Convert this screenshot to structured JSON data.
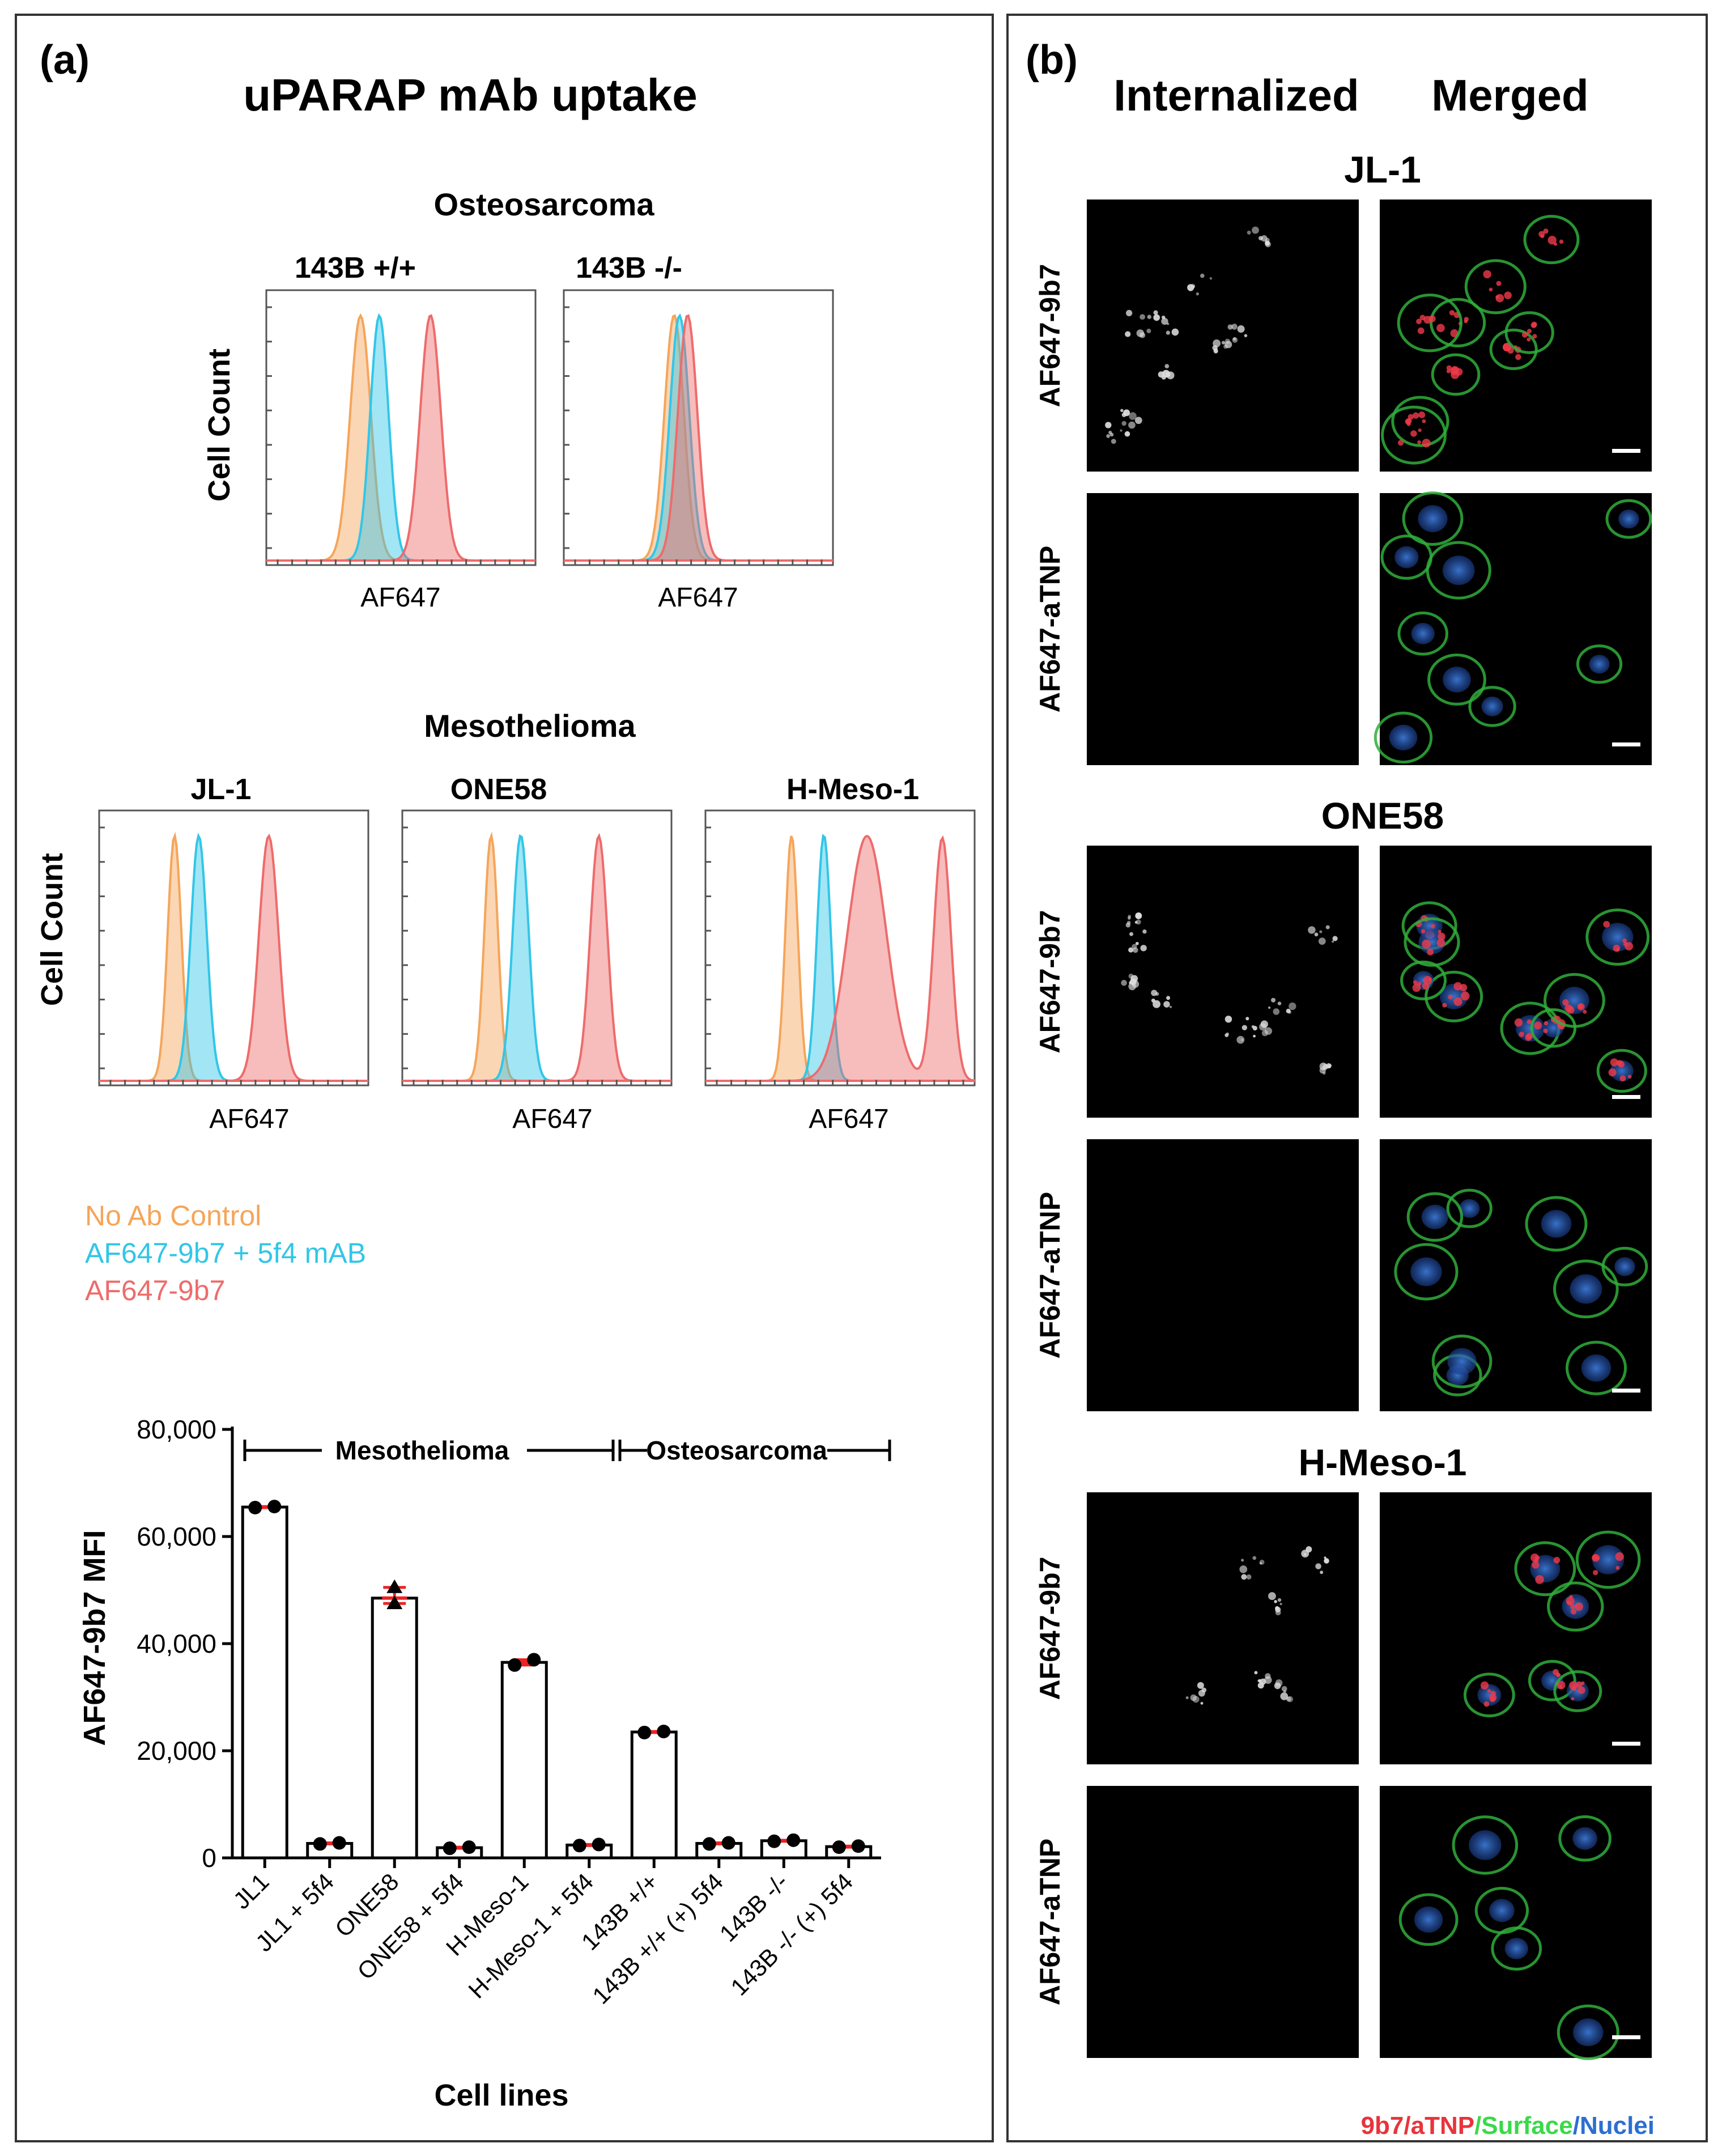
{
  "panel_a": {
    "label": "(a)",
    "title": "uPARAP mAb uptake",
    "groups": [
      {
        "name": "Osteosarcoma",
        "ylabel": "Cell Count",
        "plots": [
          {
            "title": "143B +/+",
            "xlabel": "AF647"
          },
          {
            "title": "143B -/-",
            "xlabel": "AF647"
          }
        ]
      },
      {
        "name": "Mesothelioma",
        "ylabel": "Cell Count",
        "plots": [
          {
            "title": "JL-1",
            "xlabel": "AF647"
          },
          {
            "title": "ONE58",
            "xlabel": "AF647"
          },
          {
            "title": "H-Meso-1",
            "xlabel": "AF647"
          }
        ]
      }
    ],
    "legend": [
      {
        "label": "No Ab Control",
        "color": "#f5a55a"
      },
      {
        "label": "AF647-9b7 + 5f4 mAB",
        "color": "#31c6e8"
      },
      {
        "label": "AF647-9b7",
        "color": "#ee6b6b"
      }
    ],
    "bar_chart": {
      "ylabel": "AF647-9b7 MFI",
      "xlabel": "Cell lines",
      "group_labels": [
        "Mesothelioma",
        "Osteosarcoma"
      ]
    }
  },
  "panel_b": {
    "label": "(b)",
    "column_headers": [
      "Internalized",
      "Merged"
    ],
    "sections": [
      {
        "name": "JL-1",
        "rows": [
          "AF647-9b7",
          "AF647-aTNP"
        ]
      },
      {
        "name": "ONE58",
        "rows": [
          "AF647-9b7",
          "AF647-aTNP"
        ]
      },
      {
        "name": "H-Meso-1",
        "rows": [
          "AF647-9b7",
          "AF647-aTNP"
        ]
      }
    ],
    "legend": [
      {
        "label": "9b7/aTNP",
        "color": "#e8343c"
      },
      {
        "label": "/Surface",
        "color": "#3ad94a"
      },
      {
        "label": "/Nuclei",
        "color": "#2b6fd1"
      }
    ]
  },
  "chart_data": {
    "type": "bar",
    "categories": [
      "JL1",
      "JL1 + 5f4",
      "ONE58",
      "ONE58 + 5f4",
      "H-Meso-1",
      "H-Meso-1 + 5f4",
      "143B +/+",
      "143B +/+ (+) 5f4",
      "143B -/-",
      "143B -/- (+) 5f4"
    ],
    "values": [
      65500,
      2700,
      48500,
      1900,
      36500,
      2400,
      23500,
      2700,
      3200,
      2100
    ],
    "replicates": [
      [
        65400,
        65600
      ],
      [
        2600,
        2800
      ],
      [
        47500,
        50500
      ],
      [
        1800,
        2000
      ],
      [
        36000,
        37000
      ],
      [
        2300,
        2500
      ],
      [
        23400,
        23600
      ],
      [
        2600,
        2800
      ],
      [
        3100,
        3300
      ],
      [
        2000,
        2200
      ]
    ],
    "xlabel": "Cell lines",
    "ylabel": "AF647-9b7 MFI",
    "yticks": [
      "0",
      "20,000",
      "40,000",
      "60,000",
      "80,000"
    ],
    "ylim": [
      0,
      80000
    ]
  }
}
